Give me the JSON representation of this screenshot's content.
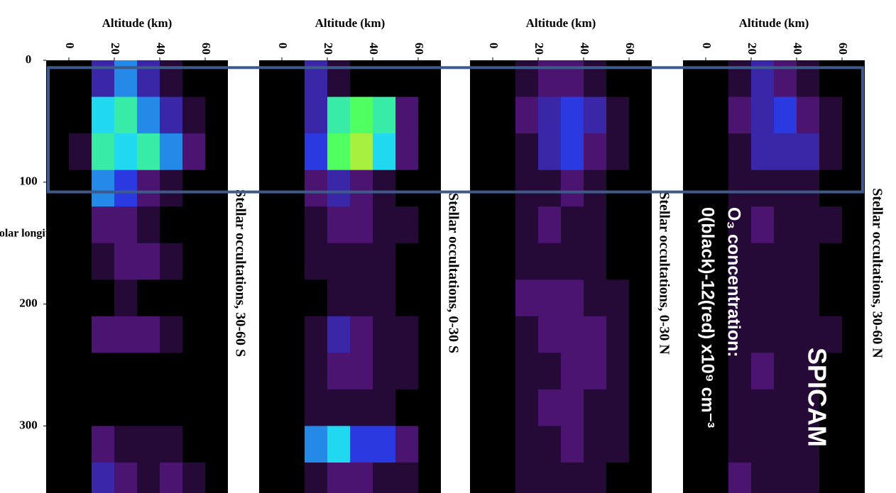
{
  "chart_data": [
    {
      "type": "heatmap",
      "title": "Stellar occultations, 30-60 S",
      "x_label": "Altitude (km)",
      "y_label": "Solar longitude",
      "xlim": [
        -10,
        70
      ],
      "xticks": [
        0,
        20,
        40,
        60
      ],
      "ylim": [
        0,
        355
      ],
      "yticks": [
        0,
        100,
        200,
        300
      ],
      "x_bins": [
        0,
        10,
        20,
        30,
        40,
        50,
        60,
        70
      ],
      "y_bins": [
        0,
        30,
        60,
        90,
        120,
        150,
        180,
        210,
        240,
        270,
        300,
        330,
        360
      ],
      "z": [
        [
          0,
          3,
          5,
          3,
          1,
          0,
          0
        ],
        [
          0,
          6,
          7,
          5,
          3,
          1,
          0
        ],
        [
          1,
          7,
          6,
          7,
          5,
          2,
          0
        ],
        [
          0,
          5,
          4,
          2,
          1,
          0,
          0
        ],
        [
          0,
          2,
          2,
          1,
          0,
          0,
          0
        ],
        [
          0,
          1,
          2,
          2,
          1,
          0,
          0
        ],
        [
          0,
          0,
          1,
          0,
          0,
          0,
          0
        ],
        [
          0,
          2,
          2,
          2,
          1,
          0,
          0
        ],
        [
          0,
          0,
          0,
          0,
          0,
          0,
          0
        ],
        [
          0,
          0,
          0,
          0,
          0,
          0,
          0
        ],
        [
          0,
          2,
          1,
          1,
          1,
          0,
          0
        ],
        [
          0,
          3,
          2,
          1,
          2,
          1,
          0
        ]
      ]
    },
    {
      "type": "heatmap",
      "title": "Stellar occultations, 0-30 S",
      "x_label": "Altitude (km)",
      "xlim": [
        -10,
        70
      ],
      "xticks": [
        0,
        20,
        40,
        60
      ],
      "ylim": [
        0,
        355
      ],
      "x_bins": [
        0,
        10,
        20,
        30,
        40,
        50,
        60,
        70
      ],
      "y_bins": [
        0,
        30,
        60,
        90,
        120,
        150,
        180,
        210,
        240,
        270,
        300,
        330,
        360
      ],
      "z": [
        [
          0,
          3,
          1,
          0,
          0,
          0,
          0
        ],
        [
          0,
          3,
          7,
          8,
          7,
          2,
          0
        ],
        [
          0,
          4,
          8,
          9,
          6,
          2,
          0
        ],
        [
          0,
          2,
          3,
          2,
          1,
          0,
          0
        ],
        [
          0,
          1,
          2,
          2,
          1,
          1,
          0
        ],
        [
          0,
          1,
          1,
          1,
          1,
          0,
          0
        ],
        [
          0,
          0,
          1,
          1,
          1,
          0,
          0
        ],
        [
          0,
          1,
          3,
          2,
          1,
          1,
          0
        ],
        [
          0,
          1,
          2,
          2,
          1,
          1,
          0
        ],
        [
          0,
          1,
          1,
          1,
          1,
          0,
          0
        ],
        [
          0,
          5,
          6,
          4,
          4,
          2,
          0
        ],
        [
          0,
          1,
          2,
          2,
          1,
          1,
          0
        ]
      ]
    },
    {
      "type": "heatmap",
      "title": "Stellar occultations, 0-30 N",
      "x_label": "Altitude (km)",
      "xlim": [
        -10,
        70
      ],
      "xticks": [
        0,
        20,
        40,
        60
      ],
      "ylim": [
        0,
        355
      ],
      "x_bins": [
        0,
        10,
        20,
        30,
        40,
        50,
        60,
        70
      ],
      "y_bins": [
        0,
        30,
        60,
        90,
        120,
        150,
        180,
        210,
        240,
        270,
        300,
        330,
        360
      ],
      "z": [
        [
          0,
          1,
          2,
          2,
          1,
          0,
          0
        ],
        [
          0,
          2,
          3,
          4,
          3,
          1,
          0
        ],
        [
          0,
          1,
          3,
          4,
          2,
          1,
          0
        ],
        [
          0,
          1,
          1,
          2,
          1,
          0,
          0
        ],
        [
          0,
          1,
          2,
          1,
          1,
          0,
          0
        ],
        [
          0,
          1,
          1,
          1,
          1,
          0,
          0
        ],
        [
          0,
          2,
          2,
          2,
          1,
          1,
          0
        ],
        [
          0,
          1,
          2,
          2,
          2,
          1,
          0
        ],
        [
          0,
          1,
          1,
          2,
          2,
          1,
          0
        ],
        [
          0,
          1,
          2,
          2,
          1,
          1,
          0
        ],
        [
          0,
          1,
          1,
          2,
          1,
          1,
          0
        ],
        [
          0,
          1,
          1,
          1,
          1,
          0,
          0
        ]
      ]
    },
    {
      "type": "heatmap",
      "title": "Stellar occultations, 30-60 N",
      "x_label": "Altitude (km)",
      "xlim": [
        -10,
        70
      ],
      "xticks": [
        0,
        20,
        40,
        60
      ],
      "ylim": [
        0,
        355
      ],
      "x_bins": [
        0,
        10,
        20,
        30,
        40,
        50,
        60,
        70
      ],
      "y_bins": [
        0,
        30,
        60,
        90,
        120,
        150,
        180,
        210,
        240,
        270,
        300,
        330,
        360
      ],
      "z": [
        [
          0,
          1,
          3,
          2,
          1,
          0,
          0
        ],
        [
          0,
          2,
          3,
          4,
          2,
          1,
          0
        ],
        [
          0,
          1,
          3,
          3,
          3,
          1,
          0
        ],
        [
          0,
          1,
          1,
          1,
          1,
          0,
          0
        ],
        [
          0,
          1,
          2,
          1,
          1,
          1,
          0
        ],
        [
          0,
          1,
          1,
          1,
          1,
          0,
          0
        ],
        [
          0,
          1,
          1,
          1,
          1,
          0,
          0
        ],
        [
          0,
          1,
          1,
          1,
          1,
          1,
          0
        ],
        [
          0,
          1,
          2,
          1,
          1,
          0,
          0
        ],
        [
          0,
          1,
          1,
          1,
          1,
          0,
          0
        ],
        [
          0,
          1,
          1,
          1,
          1,
          0,
          0
        ],
        [
          0,
          2,
          1,
          1,
          1,
          0,
          0
        ]
      ]
    }
  ],
  "zlim": [
    0,
    12
  ],
  "colors": [
    "#000000",
    "#4a1470",
    "#2a3ae0",
    "#20d8f0",
    "#50ff60",
    "#ffe020",
    "#ff1010"
  ],
  "highlight_range": [
    6,
    108
  ],
  "annotations": {
    "title": "SPICAM",
    "line1": "O₃ concentration:",
    "line2": "0(black)-12(red) x10⁹ cm⁻³"
  }
}
